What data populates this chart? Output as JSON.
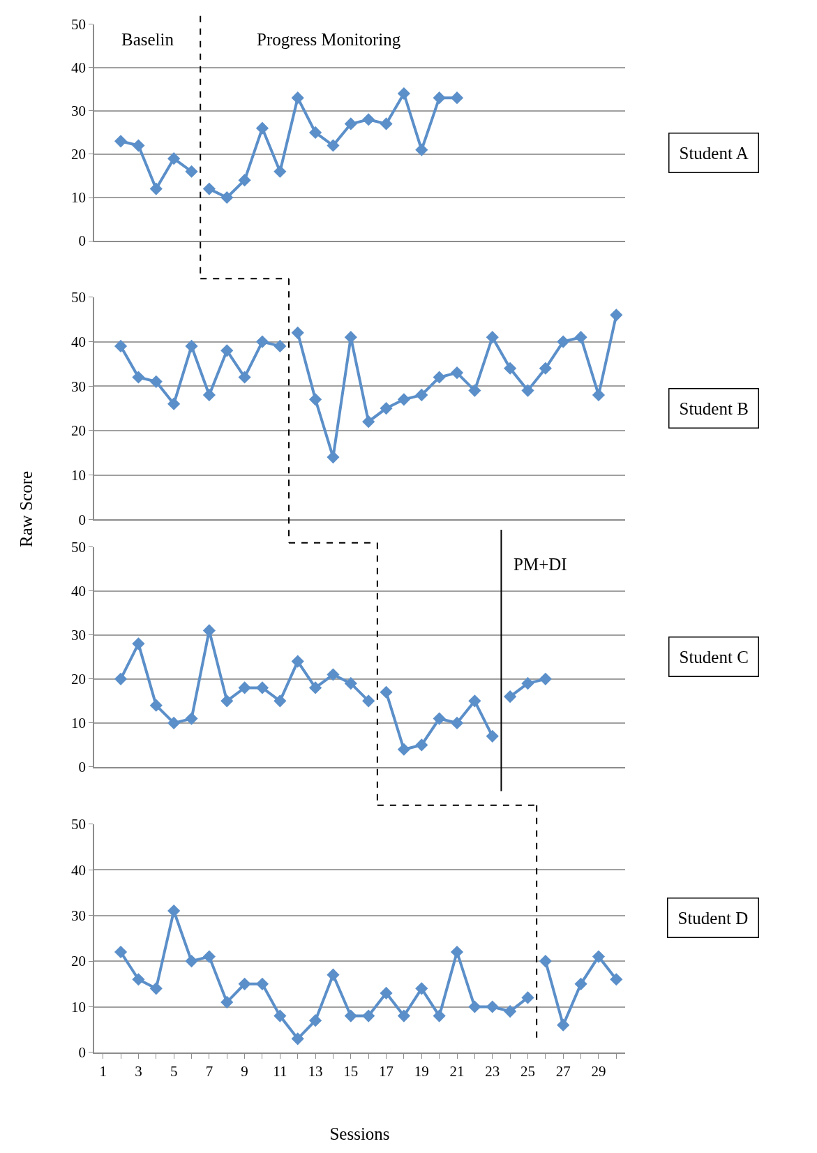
{
  "chart_data": [
    {
      "type": "line",
      "xlim": [
        0.5,
        30.5
      ],
      "ylim": [
        0,
        50
      ],
      "yticks": [
        0,
        10,
        20,
        30,
        40,
        50
      ],
      "tick_labels": "y",
      "grid": "y",
      "marker": "diamond",
      "series": [
        {
          "color": "#5b8fc9",
          "x": [
            2,
            3,
            4,
            5,
            6
          ],
          "values": [
            23,
            22,
            12,
            19,
            16
          ]
        },
        {
          "color": "#5b8fc9",
          "x": [
            7,
            8,
            9,
            10,
            11,
            12,
            13,
            14,
            15,
            16,
            17,
            18,
            19,
            20,
            21
          ],
          "values": [
            12,
            10,
            14,
            26,
            16,
            33,
            25,
            22,
            27,
            28,
            27,
            34,
            21,
            33,
            33
          ]
        }
      ],
      "ref_lines": [
        {
          "axis": "x",
          "value": 6.5,
          "line_style": "dashed",
          "color": "#000000"
        }
      ],
      "annotations": [
        "Baselin",
        "Progress Monitoring",
        "Student A"
      ]
    },
    {
      "type": "line",
      "xlim": [
        0.5,
        30.5
      ],
      "ylim": [
        0,
        50
      ],
      "yticks": [
        0,
        10,
        20,
        30,
        40,
        50
      ],
      "tick_labels": "y",
      "grid": "y",
      "marker": "diamond",
      "ylabel": "Raw Score",
      "series": [
        {
          "color": "#5b8fc9",
          "x": [
            2,
            3,
            4,
            5,
            6,
            7,
            8,
            9,
            10,
            11
          ],
          "values": [
            39,
            32,
            31,
            26,
            39,
            28,
            38,
            32,
            40,
            39
          ]
        },
        {
          "color": "#5b8fc9",
          "x": [
            12,
            13,
            14,
            15,
            16,
            17,
            18,
            19,
            20,
            21,
            22,
            23,
            24,
            25,
            26,
            27,
            28,
            29,
            30
          ],
          "values": [
            42,
            27,
            14,
            41,
            22,
            25,
            27,
            28,
            32,
            33,
            29,
            41,
            34,
            29,
            34,
            40,
            41,
            28,
            46
          ]
        }
      ],
      "ref_lines": [
        {
          "axis": "x",
          "value": 11.5,
          "line_style": "dashed",
          "color": "#000000"
        }
      ],
      "annotations": [
        "Student B"
      ]
    },
    {
      "type": "line",
      "xlim": [
        0.5,
        30.5
      ],
      "ylim": [
        0,
        50
      ],
      "yticks": [
        0,
        10,
        20,
        30,
        40,
        50
      ],
      "tick_labels": "y",
      "grid": "y",
      "marker": "diamond",
      "series": [
        {
          "color": "#5b8fc9",
          "x": [
            2,
            3,
            4,
            5,
            6,
            7,
            8,
            9,
            10,
            11,
            12,
            13,
            14,
            15,
            16
          ],
          "values": [
            20,
            28,
            14,
            10,
            11,
            31,
            15,
            18,
            18,
            15,
            24,
            18,
            21,
            19,
            15
          ]
        },
        {
          "color": "#5b8fc9",
          "x": [
            17,
            18,
            19,
            20,
            21,
            22,
            23
          ],
          "values": [
            17,
            4,
            5,
            11,
            10,
            15,
            7
          ]
        },
        {
          "color": "#5b8fc9",
          "x": [
            24,
            25,
            26
          ],
          "values": [
            16,
            19,
            20
          ]
        }
      ],
      "ref_lines": [
        {
          "axis": "x",
          "value": 16.5,
          "line_style": "dashed",
          "color": "#000000"
        },
        {
          "axis": "x",
          "value": 23.5,
          "line_style": "solid",
          "color": "#000000",
          "label": "PM+DI"
        }
      ],
      "annotations": [
        "Student C"
      ]
    },
    {
      "type": "line",
      "xlim": [
        0.5,
        30.5
      ],
      "ylim": [
        0,
        50
      ],
      "yticks": [
        0,
        10,
        20,
        30,
        40,
        50
      ],
      "grid": "y",
      "marker": "diamond",
      "xlabel": "Sessions",
      "xticks": [
        1,
        {
          "value": 2,
          "label": null
        },
        3,
        {
          "value": 4,
          "label": null
        },
        5,
        {
          "value": 6,
          "label": null
        },
        7,
        {
          "value": 8,
          "label": null
        },
        9,
        {
          "value": 10,
          "label": null
        },
        11,
        {
          "value": 12,
          "label": null
        },
        13,
        {
          "value": 14,
          "label": null
        },
        15,
        {
          "value": 16,
          "label": null
        },
        17,
        {
          "value": 18,
          "label": null
        },
        19,
        {
          "value": 20,
          "label": null
        },
        21,
        {
          "value": 22,
          "label": null
        },
        23,
        {
          "value": 24,
          "label": null
        },
        25,
        {
          "value": 26,
          "label": null
        },
        27,
        {
          "value": 28,
          "label": null
        },
        29,
        {
          "value": 30,
          "label": null
        }
      ],
      "series": [
        {
          "color": "#5b8fc9",
          "x": [
            2,
            3,
            4,
            5,
            6,
            7,
            8,
            9,
            10,
            11,
            12,
            13,
            14,
            15,
            16,
            17,
            18,
            19,
            20,
            21,
            22,
            23,
            24,
            25
          ],
          "values": [
            22,
            16,
            14,
            31,
            20,
            21,
            11,
            15,
            15,
            8,
            3,
            7,
            17,
            8,
            8,
            13,
            8,
            14,
            8,
            22,
            10,
            10,
            9,
            12
          ]
        },
        {
          "color": "#5b8fc9",
          "x": [
            26,
            27,
            28,
            29,
            30
          ],
          "values": [
            20,
            6,
            15,
            21,
            16
          ]
        }
      ],
      "ref_lines": [
        {
          "axis": "x",
          "value": 25.5,
          "line_style": "dashed",
          "color": "#000000"
        }
      ],
      "annotations": [
        "Student D"
      ]
    }
  ]
}
